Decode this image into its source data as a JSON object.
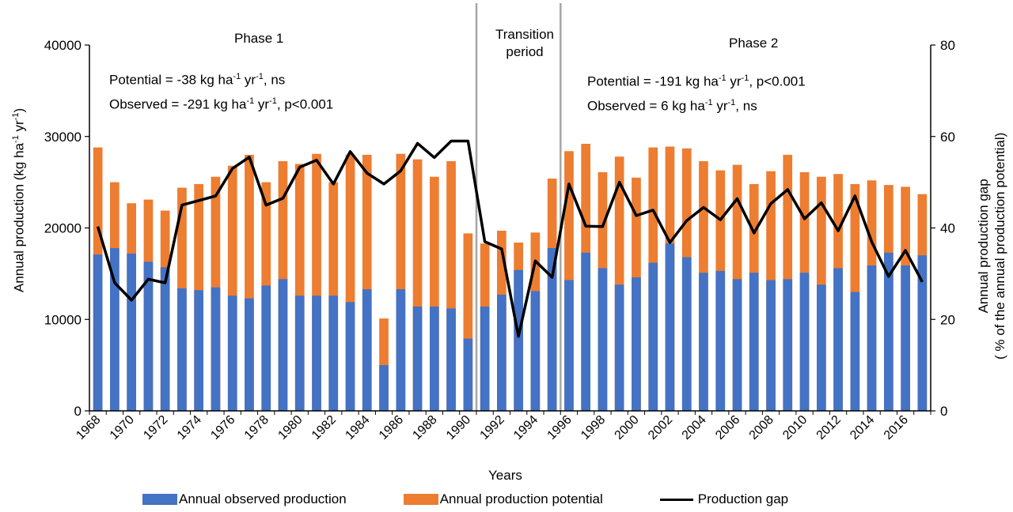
{
  "chart_data": {
    "type": "bar",
    "xlabel": "Years",
    "ylabel": "Annual production (kg ha-1 yr-1)",
    "ylabel_parts": {
      "pre": "Annual production (kg ha",
      "sup1": "-1",
      "mid": " yr",
      "sup2": "-1",
      "post": ")"
    },
    "y2label_line1": "Annual production gap",
    "y2label_line2": "( % of the annual production potential)",
    "ylim": [
      0,
      40000
    ],
    "y2lim": [
      0,
      80
    ],
    "yticks": [
      "0",
      "10000",
      "20000",
      "30000",
      "40000"
    ],
    "y2ticks": [
      "0",
      "20",
      "40",
      "60",
      "80"
    ],
    "x": [
      1968,
      1969,
      1970,
      1971,
      1972,
      1973,
      1974,
      1975,
      1976,
      1977,
      1978,
      1979,
      1980,
      1981,
      1982,
      1983,
      1984,
      1985,
      1986,
      1987,
      1988,
      1989,
      1990,
      1991,
      1992,
      1993,
      1994,
      1995,
      1996,
      1997,
      1998,
      1999,
      2000,
      2001,
      2002,
      2003,
      2004,
      2005,
      2006,
      2007,
      2008,
      2009,
      2010,
      2011,
      2012,
      2013,
      2014,
      2015,
      2016,
      2017
    ],
    "xticks": [
      "1968",
      "1970",
      "1972",
      "1974",
      "1976",
      "1978",
      "1980",
      "1982",
      "1984",
      "1986",
      "1988",
      "1990",
      "1992",
      "1994",
      "1996",
      "1998",
      "2000",
      "2002",
      "2004",
      "2006",
      "2008",
      "2010",
      "2012",
      "2014",
      "2016"
    ],
    "series": [
      {
        "name": "Annual observed production",
        "stack": "bar",
        "color": "#4472C4",
        "values": [
          17100,
          17800,
          17200,
          16300,
          15700,
          13400,
          13200,
          13500,
          12600,
          12300,
          13700,
          14400,
          12600,
          12600,
          12600,
          11900,
          13300,
          5000,
          13300,
          11400,
          11400,
          11200,
          7900,
          11400,
          12700,
          15400,
          13100,
          17800,
          14300,
          17300,
          15600,
          13800,
          14600,
          16200,
          18300,
          16800,
          15100,
          15300,
          14400,
          15100,
          14300,
          14400,
          15100,
          13800,
          15600,
          13000,
          15900,
          17300,
          15900,
          17000
        ]
      },
      {
        "name": "Annual production potential",
        "stack": "bar",
        "color": "#ED7D31",
        "values": [
          28800,
          25000,
          22700,
          23100,
          21900,
          24400,
          24800,
          25600,
          26800,
          28000,
          25000,
          27300,
          27000,
          28100,
          25000,
          28000,
          28000,
          10100,
          28100,
          27500,
          25600,
          27300,
          19400,
          18300,
          19700,
          18400,
          19500,
          25400,
          28400,
          29200,
          26100,
          27800,
          25500,
          28800,
          28900,
          28700,
          27300,
          26300,
          26900,
          24800,
          26200,
          28000,
          26100,
          25600,
          25900,
          24800,
          25200,
          24700,
          24500,
          23700
        ]
      },
      {
        "name": "Production gap",
        "axis": "right",
        "color": "#000000",
        "values": [
          40.3,
          28.0,
          24.2,
          28.8,
          28.0,
          45.0,
          46.0,
          47.0,
          53.0,
          55.5,
          45.0,
          46.5,
          53.3,
          54.8,
          49.6,
          56.7,
          52.0,
          49.6,
          52.5,
          58.5,
          55.4,
          59.0,
          59.0,
          37.0,
          35.4,
          16.3,
          32.8,
          29.2,
          49.6,
          40.4,
          40.3,
          50.0,
          42.7,
          43.9,
          36.8,
          41.6,
          44.5,
          41.8,
          46.4,
          38.9,
          45.3,
          48.4,
          42.0,
          45.5,
          39.4,
          47.0,
          36.9,
          29.4,
          35.1,
          28.2
        ]
      }
    ],
    "annotations": {
      "phase1_title": "Phase 1",
      "phase1_potential": {
        "pre": "Potential  = -38 kg ha",
        "sup1": "-1",
        "mid": " yr",
        "sup2": "-1",
        "post": ", ns"
      },
      "phase1_observed": {
        "pre": "Observed = -291 kg ha",
        "sup1": "-1",
        "mid": " yr",
        "sup2": "-1",
        "post": ", p<0.001"
      },
      "transition_line1": "Transition",
      "transition_line2": "period",
      "phase2_title": "Phase 2",
      "phase2_potential": {
        "pre": "Potential  = -191 kg ha",
        "sup1": "-1",
        "mid": " yr",
        "sup2": "-1",
        "post": ", p<0.001"
      },
      "phase2_observed": {
        "pre": "Observed = 6 kg ha",
        "sup1": "-1",
        "mid": " yr",
        "sup2": "-1",
        "post": ", ns"
      }
    },
    "period_dividers_after_year": [
      1990,
      1995
    ],
    "grid": false,
    "legend_position": "bottom"
  },
  "legend": {
    "observed_label": "Annual observed production",
    "potential_label": "Annual production potential",
    "gap_label": "Production gap"
  }
}
